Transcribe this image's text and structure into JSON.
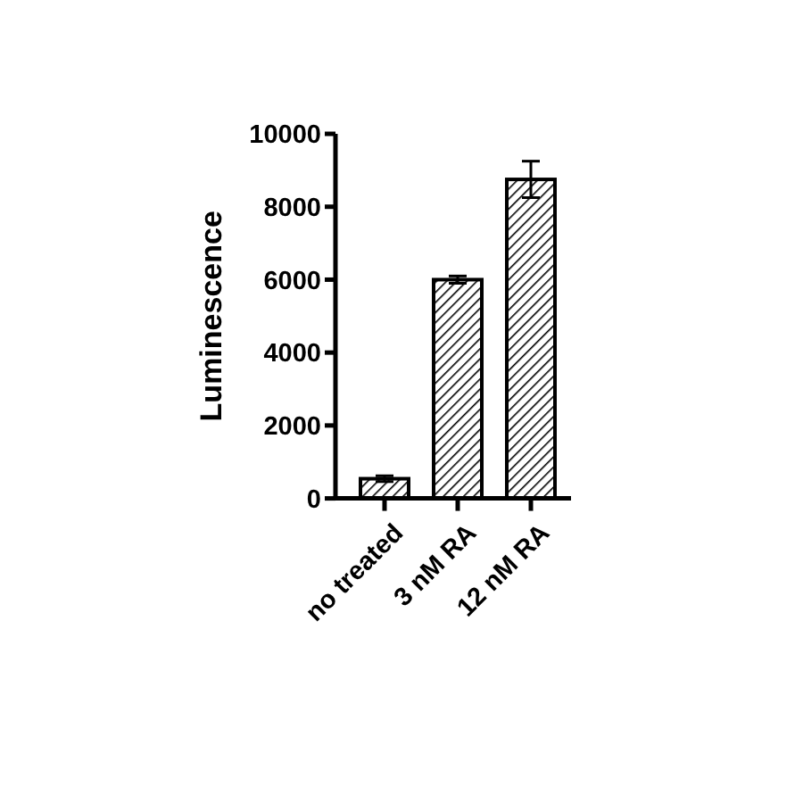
{
  "chart_data": {
    "type": "bar",
    "ylabel": "Luminescence",
    "categories": [
      "no treated",
      "3 nM RA",
      "12 nM RA"
    ],
    "values": [
      540,
      6000,
      8750
    ],
    "errors": [
      80,
      100,
      500
    ],
    "color": "#000000",
    "ylim": [
      0,
      10000
    ],
    "yticks": [
      0,
      2000,
      4000,
      6000,
      8000,
      10000
    ]
  }
}
